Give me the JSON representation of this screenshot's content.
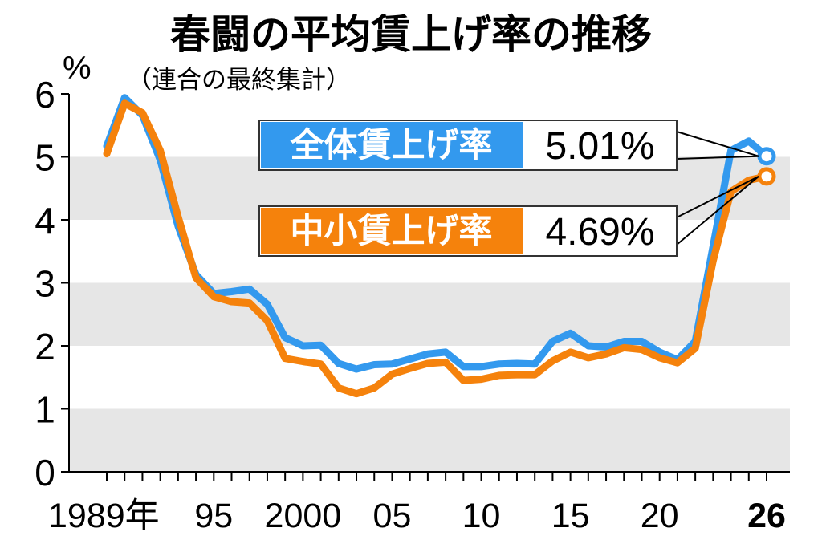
{
  "chart_data": {
    "type": "line",
    "title": "春闘の平均賃上げ率の推移",
    "subtitle": "（連合の最終集計）",
    "ylabel": "%",
    "ylim": [
      0,
      6
    ],
    "yticks": [
      "0",
      "1",
      "2",
      "3",
      "4",
      "5",
      "6"
    ],
    "grid": "alternating horizontal bands",
    "xticks": [
      {
        "year": 1989,
        "label": "1989年"
      },
      {
        "year": 1995,
        "label": "95"
      },
      {
        "year": 2000,
        "label": "2000"
      },
      {
        "year": 2005,
        "label": "05"
      },
      {
        "year": 2010,
        "label": "10"
      },
      {
        "year": 2015,
        "label": "15"
      },
      {
        "year": 2020,
        "label": "20"
      },
      {
        "year": 2026,
        "label": "26"
      }
    ],
    "x": [
      1989,
      1990,
      1991,
      1992,
      1993,
      1994,
      1995,
      1996,
      1997,
      1998,
      1999,
      2000,
      2001,
      2002,
      2003,
      2004,
      2005,
      2006,
      2007,
      2008,
      2009,
      2010,
      2011,
      2012,
      2013,
      2014,
      2015,
      2016,
      2017,
      2018,
      2019,
      2020,
      2021,
      2022,
      2023,
      2024,
      2025,
      2026
    ],
    "series": [
      {
        "name": "全体賃上げ率",
        "color": "#3399ee",
        "end_label": "5.01%",
        "values": [
          5.17,
          5.94,
          5.66,
          4.95,
          3.9,
          3.13,
          2.83,
          2.86,
          2.9,
          2.66,
          2.13,
          2.0,
          2.01,
          1.72,
          1.63,
          1.7,
          1.71,
          1.79,
          1.87,
          1.9,
          1.67,
          1.67,
          1.71,
          1.72,
          1.71,
          2.07,
          2.2,
          2.0,
          1.98,
          2.07,
          2.07,
          1.9,
          1.78,
          2.07,
          3.58,
          5.1,
          5.25,
          5.01
        ]
      },
      {
        "name": "中小賃上げ率",
        "color": "#f5820c",
        "end_label": "4.69%",
        "values": [
          5.05,
          5.85,
          5.7,
          5.1,
          4.05,
          3.08,
          2.78,
          2.7,
          2.68,
          2.4,
          1.8,
          1.75,
          1.71,
          1.33,
          1.24,
          1.33,
          1.55,
          1.64,
          1.72,
          1.74,
          1.45,
          1.47,
          1.53,
          1.54,
          1.54,
          1.76,
          1.9,
          1.81,
          1.87,
          1.97,
          1.94,
          1.81,
          1.73,
          1.96,
          3.35,
          4.45,
          4.63,
          4.69
        ]
      }
    ]
  }
}
